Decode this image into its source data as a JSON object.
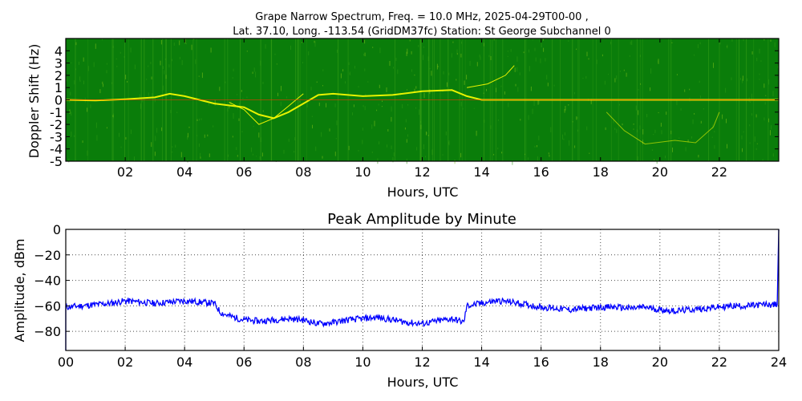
{
  "chart_data": [
    {
      "type": "heatmap",
      "title_line1": "Grape Narrow Spectrum, Freq. = 10.0 MHz, 2025-04-29T00-00 ,",
      "title_line2": "Lat.  37.10, Long. -113.54 (GridDM37fc) Station: St George Subchannel 0",
      "xlabel": "Hours, UTC",
      "ylabel": "Doppler Shift (Hz)",
      "xlim": [
        0,
        24
      ],
      "ylim": [
        -5,
        5
      ],
      "x_ticks": [
        "02",
        "04",
        "06",
        "08",
        "10",
        "12",
        "14",
        "16",
        "18",
        "20",
        "22"
      ],
      "x_tick_values": [
        2,
        4,
        6,
        8,
        10,
        12,
        14,
        16,
        18,
        20,
        22
      ],
      "y_ticks": [
        "4",
        "3",
        "2",
        "1",
        "0",
        "-1",
        "-2",
        "-3",
        "-4",
        "-5"
      ],
      "y_tick_values": [
        4,
        3,
        2,
        1,
        0,
        -1,
        -2,
        -3,
        -4,
        -5
      ],
      "colors": {
        "background": "#0a7d0a",
        "trace": "#ffff00",
        "peak": "#ff3300"
      },
      "traces": [
        {
          "name": "main",
          "points": [
            [
              0,
              0
            ],
            [
              1,
              -0.05
            ],
            [
              2,
              0.05
            ],
            [
              3,
              0.2
            ],
            [
              3.5,
              0.5
            ],
            [
              4,
              0.3
            ],
            [
              5,
              -0.3
            ],
            [
              6,
              -0.6
            ],
            [
              6.5,
              -1.2
            ],
            [
              7,
              -1.5
            ],
            [
              7.5,
              -1.0
            ],
            [
              8,
              -0.3
            ],
            [
              8.5,
              0.4
            ],
            [
              9,
              0.5
            ],
            [
              10,
              0.3
            ],
            [
              11,
              0.4
            ],
            [
              12,
              0.7
            ],
            [
              13,
              0.8
            ],
            [
              13.5,
              0.3
            ],
            [
              14,
              0
            ],
            [
              16,
              0
            ],
            [
              18,
              0
            ],
            [
              20,
              0
            ],
            [
              22,
              0
            ],
            [
              24,
              0
            ]
          ]
        },
        {
          "name": "branch",
          "points": [
            [
              5.5,
              -0.2
            ],
            [
              6,
              -0.8
            ],
            [
              6.5,
              -2.0
            ],
            [
              7,
              -1.5
            ],
            [
              7.5,
              -0.5
            ],
            [
              8,
              0.5
            ]
          ]
        },
        {
          "name": "high",
          "points": [
            [
              13.5,
              1.0
            ],
            [
              14.2,
              1.3
            ],
            [
              14.8,
              2.0
            ],
            [
              15.1,
              2.8
            ]
          ]
        },
        {
          "name": "low_arc",
          "points": [
            [
              18.2,
              -1.0
            ],
            [
              18.8,
              -2.5
            ],
            [
              19.5,
              -3.6
            ],
            [
              20.5,
              -3.3
            ],
            [
              21.2,
              -3.5
            ],
            [
              21.8,
              -2.2
            ],
            [
              22,
              -1.0
            ]
          ]
        }
      ]
    },
    {
      "type": "line",
      "title": "Peak Amplitude by Minute",
      "xlabel": "Hours, UTC",
      "ylabel": "Amplitude, dBm",
      "xlim": [
        0,
        24
      ],
      "ylim": [
        -95,
        0
      ],
      "x_ticks": [
        "00",
        "02",
        "04",
        "06",
        "08",
        "10",
        "12",
        "14",
        "16",
        "18",
        "20",
        "22",
        "24"
      ],
      "x_tick_values": [
        0,
        2,
        4,
        6,
        8,
        10,
        12,
        14,
        16,
        18,
        20,
        22,
        24
      ],
      "y_ticks": [
        "0",
        "−20",
        "−40",
        "−60",
        "−80"
      ],
      "y_tick_values": [
        0,
        -20,
        -40,
        -60,
        -80
      ],
      "grid": true,
      "color": "#0000ff",
      "series": [
        {
          "x": [
            0,
            0.5,
            1,
            1.5,
            2,
            2.5,
            3,
            3.5,
            4,
            4.5,
            5,
            5.2,
            5.5,
            6,
            6.5,
            7,
            7.5,
            8,
            8.5,
            9,
            9.5,
            10,
            10.5,
            11,
            11.5,
            12,
            12.5,
            13,
            13.4,
            13.5,
            14,
            14.5,
            15,
            15.5,
            16,
            16.5,
            17,
            17.5,
            18,
            18.5,
            19,
            19.5,
            20,
            20.5,
            21,
            21.5,
            22,
            22.5,
            23,
            23.5,
            23.95
          ],
          "y": [
            -61,
            -60,
            -59,
            -58,
            -56,
            -57,
            -58,
            -57,
            -56,
            -57,
            -58,
            -65,
            -68,
            -71,
            -72,
            -71,
            -70,
            -71,
            -74,
            -73,
            -71,
            -70,
            -69,
            -71,
            -73,
            -74,
            -72,
            -70,
            -73,
            -60,
            -58,
            -56,
            -57,
            -59,
            -61,
            -62,
            -63,
            -62,
            -61,
            -61,
            -62,
            -61,
            -63,
            -64,
            -63,
            -62,
            -61,
            -60,
            -60,
            -59,
            -59
          ]
        }
      ]
    }
  ]
}
